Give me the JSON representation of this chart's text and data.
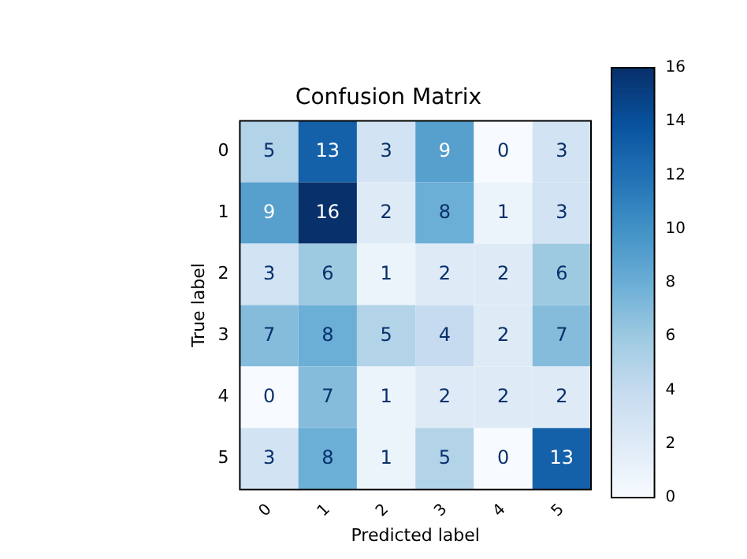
{
  "chart_data": {
    "type": "heatmap",
    "title": "Confusion Matrix",
    "xlabel": "Predicted label",
    "ylabel": "True label",
    "categories": [
      "0",
      "1",
      "2",
      "3",
      "4",
      "5"
    ],
    "y_categories": [
      "0",
      "1",
      "2",
      "3",
      "4",
      "5"
    ],
    "cells": [
      [
        5,
        13,
        3,
        9,
        0,
        3
      ],
      [
        9,
        16,
        2,
        8,
        1,
        3
      ],
      [
        3,
        6,
        1,
        2,
        2,
        6
      ],
      [
        7,
        8,
        5,
        4,
        2,
        7
      ],
      [
        0,
        7,
        1,
        2,
        2,
        2
      ],
      [
        3,
        8,
        1,
        5,
        0,
        13
      ]
    ],
    "clim": [
      0,
      16
    ],
    "cticks": [
      0,
      2,
      4,
      6,
      8,
      10,
      12,
      14,
      16
    ],
    "data_labels": true
  }
}
